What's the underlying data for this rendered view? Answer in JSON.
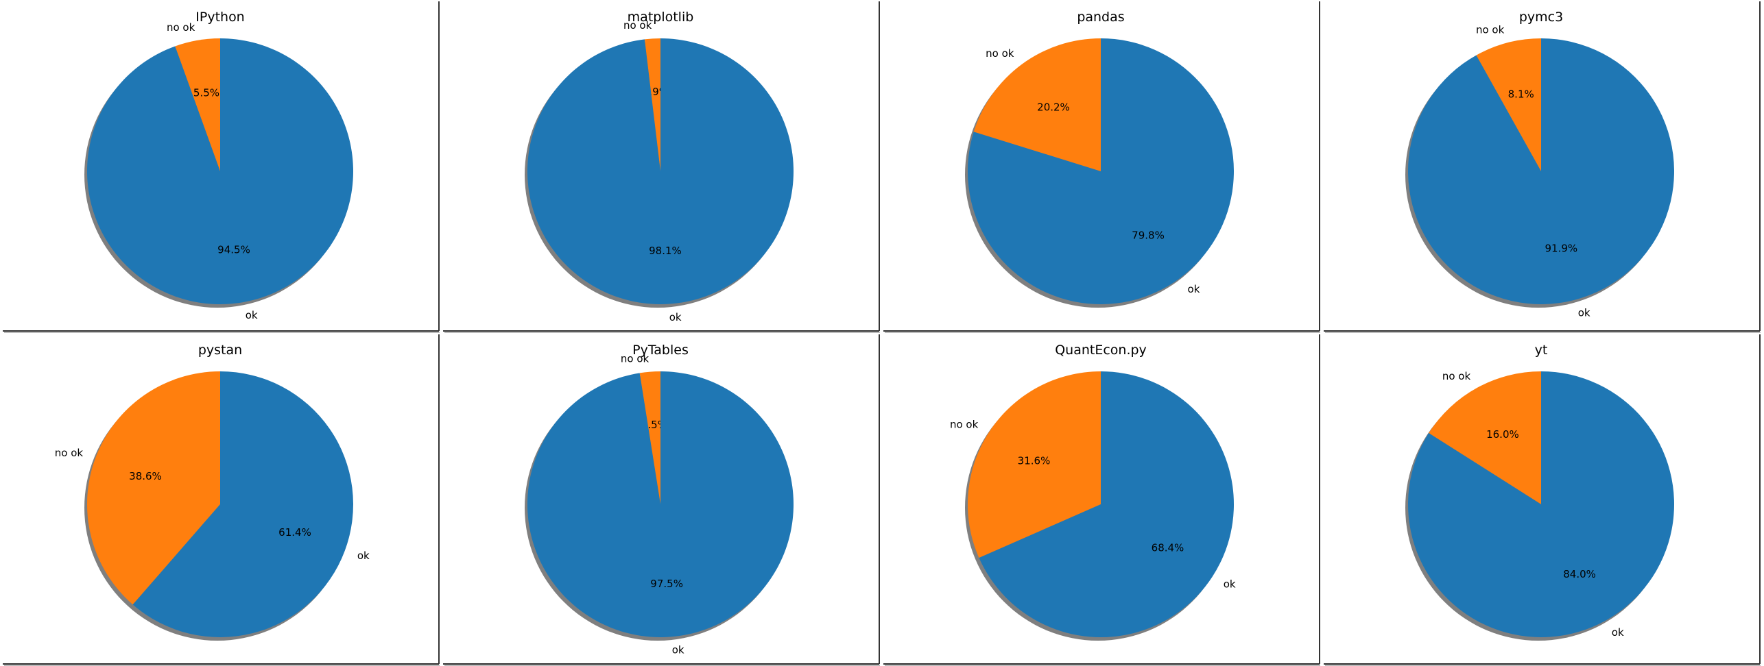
{
  "colors": {
    "ok": "#1f77b4",
    "no_ok": "#ff7f0e",
    "shadow": "#7f7f7f"
  },
  "chart_data": [
    {
      "type": "pie",
      "title": "IPython",
      "labels": [
        "no ok",
        "ok"
      ],
      "values": [
        5.5,
        94.5
      ],
      "autopct": [
        "5.5%",
        "94.5%"
      ]
    },
    {
      "type": "pie",
      "title": "matplotlib",
      "labels": [
        "no ok",
        "ok"
      ],
      "values": [
        1.9,
        98.1
      ],
      "autopct": [
        "1.9%",
        "98.1%"
      ]
    },
    {
      "type": "pie",
      "title": "pandas",
      "labels": [
        "no ok",
        "ok"
      ],
      "values": [
        20.2,
        79.8
      ],
      "autopct": [
        "20.2%",
        "79.8%"
      ]
    },
    {
      "type": "pie",
      "title": "pymc3",
      "labels": [
        "no ok",
        "ok"
      ],
      "values": [
        8.1,
        91.9
      ],
      "autopct": [
        "8.1%",
        "91.9%"
      ]
    },
    {
      "type": "pie",
      "title": "pystan",
      "labels": [
        "no ok",
        "ok"
      ],
      "values": [
        38.6,
        61.4
      ],
      "autopct": [
        "38.6%",
        "61.4%"
      ]
    },
    {
      "type": "pie",
      "title": "PyTables",
      "labels": [
        "no ok",
        "ok"
      ],
      "values": [
        2.5,
        97.5
      ],
      "autopct": [
        "2.5%",
        "97.5%"
      ]
    },
    {
      "type": "pie",
      "title": "QuantEcon.py",
      "labels": [
        "no ok",
        "ok"
      ],
      "values": [
        31.6,
        68.4
      ],
      "autopct": [
        "31.6%",
        "68.4%"
      ]
    },
    {
      "type": "pie",
      "title": "yt",
      "labels": [
        "no ok",
        "ok"
      ],
      "values": [
        16.0,
        84.0
      ],
      "autopct": [
        "16.0%",
        "84.0%"
      ]
    }
  ]
}
